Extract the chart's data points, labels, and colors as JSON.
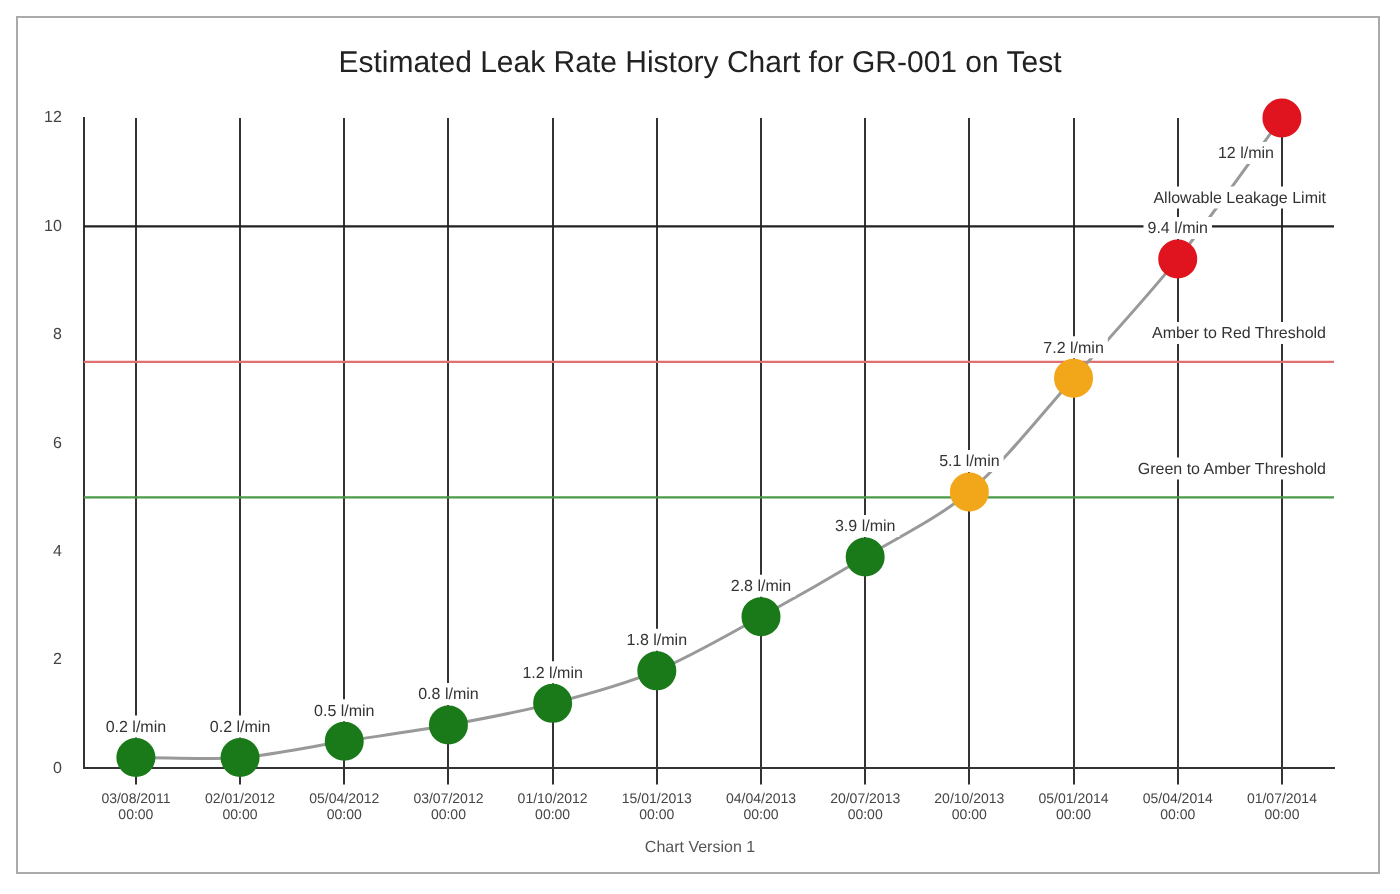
{
  "chart_data": {
    "type": "line",
    "title": "Estimated Leak Rate History Chart for GR-001 on Test",
    "categories": [
      "03/08/2011 00:00",
      "02/01/2012 00:00",
      "05/04/2012 00:00",
      "03/07/2012 00:00",
      "01/10/2012 00:00",
      "15/01/2013 00:00",
      "04/04/2013 00:00",
      "20/07/2013 00:00",
      "20/10/2013 00:00",
      "05/01/2014 00:00",
      "05/04/2014 00:00",
      "01/07/2014 00:00"
    ],
    "series": [
      {
        "color": "#999999",
        "colors": [
          "#1a7a1a",
          "#1a7a1a",
          "#1a7a1a",
          "#1a7a1a",
          "#1a7a1a",
          "#1a7a1a",
          "#1a7a1a",
          "#1a7a1a",
          "#f2a71b",
          "#f2a71b",
          "#e0141e",
          "#e0141e"
        ],
        "values": [
          0.2,
          0.2,
          0.5,
          0.8,
          1.2,
          1.8,
          2.8,
          3.9,
          5.1,
          7.2,
          9.4,
          12
        ],
        "value_labels": [
          "0.2 l/min",
          "0.2 l/min",
          "0.5 l/min",
          "0.8 l/min",
          "1.2 l/min",
          "1.8 l/min",
          "2.8 l/min",
          "3.9 l/min",
          "5.1 l/min",
          "7.2 l/min",
          "9.4 l/min",
          "12 l/min"
        ]
      }
    ],
    "ylim": [
      0,
      12
    ],
    "yticks": [
      0,
      2,
      4,
      6,
      8,
      10,
      12
    ],
    "grid": "x",
    "marker": "circle",
    "line_style": "solid",
    "legend": false,
    "ref_lines": [
      {
        "axis": "y",
        "value": 10,
        "label": "Allowable Leakage Limit",
        "color": "#222222"
      },
      {
        "axis": "y",
        "value": 7.5,
        "label": "Amber to Red Threshold",
        "color": "#e07070"
      },
      {
        "axis": "y",
        "value": 5,
        "label": "Green to Amber Threshold",
        "color": "#4a9a4a"
      }
    ],
    "annotations": [
      "Chart Version 1"
    ]
  }
}
